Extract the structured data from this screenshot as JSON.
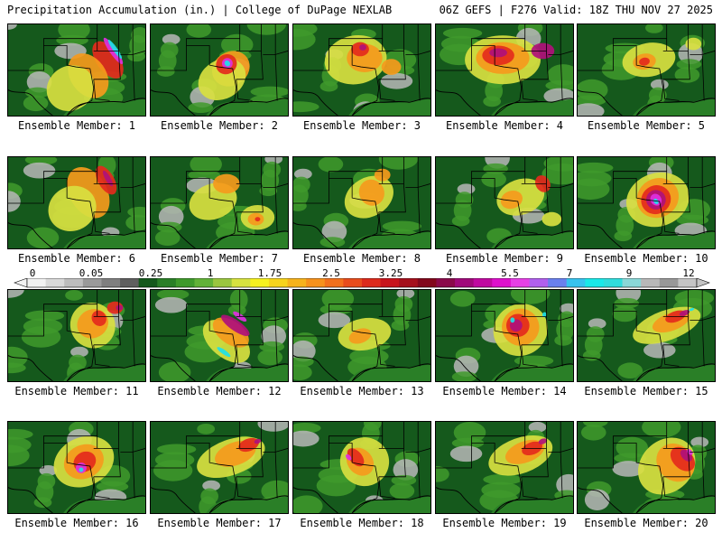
{
  "header": {
    "left": "Precipitation Accumulation (in.) | College of DuPage NEXLAB",
    "right": "06Z GEFS | F276 Valid: 18Z THU NOV 27 2025"
  },
  "colorbar": {
    "labels": [
      "0",
      "0.05",
      "0.25",
      "1",
      "1.75",
      "2.5",
      "3.25",
      "4",
      "5.5",
      "7",
      "9",
      "12"
    ],
    "colors": [
      "#f2f2f2",
      "#d9d9d9",
      "#bdbdbd",
      "#9a9a9a",
      "#7f7f7f",
      "#5f5f5f",
      "#15591c",
      "#2a7f27",
      "#3f9a2c",
      "#62b238",
      "#9ac63f",
      "#d6e23f",
      "#f6f11f",
      "#f6d31c",
      "#f6b21c",
      "#f6911c",
      "#f2701c",
      "#e84c1c",
      "#dd2a1c",
      "#c8141c",
      "#a5101c",
      "#82081c",
      "#8a0a4a",
      "#a00a7a",
      "#c00aa0",
      "#de10cc",
      "#e640e6",
      "#b060ee",
      "#6a80ee",
      "#38c2ee",
      "#1ae8e8",
      "#30dcdc",
      "#8ad8d8",
      "#b8b8b8",
      "#989898",
      "#c4c4c4"
    ]
  },
  "members": [
    {
      "caption": "Ensemble Member: 1",
      "blobs": [
        [
          112,
          40,
          26,
          48,
          -35,
          3
        ],
        [
          90,
          58,
          40,
          55,
          -35,
          2
        ],
        [
          70,
          72,
          55,
          50,
          -35,
          1
        ],
        [
          118,
          30,
          8,
          36,
          -35,
          5
        ],
        [
          120,
          28,
          5,
          26,
          -35,
          6
        ]
      ]
    },
    {
      "caption": "Ensemble Member: 2",
      "blobs": [
        [
          90,
          50,
          44,
          38,
          -35,
          2
        ],
        [
          80,
          62,
          56,
          44,
          -30,
          1
        ],
        [
          85,
          45,
          24,
          22,
          -35,
          3
        ],
        [
          86,
          44,
          12,
          12,
          -35,
          5
        ],
        [
          86,
          44,
          6,
          7,
          -35,
          6
        ]
      ]
    },
    {
      "caption": "Ensemble Member: 3",
      "blobs": [
        [
          70,
          40,
          70,
          55,
          -10,
          1
        ],
        [
          80,
          38,
          40,
          32,
          0,
          2
        ],
        [
          75,
          28,
          20,
          16,
          0,
          3
        ],
        [
          78,
          26,
          8,
          7,
          0,
          4
        ],
        [
          110,
          48,
          22,
          18,
          0,
          2
        ]
      ]
    },
    {
      "caption": "Ensemble Member: 4",
      "blobs": [
        [
          75,
          40,
          85,
          55,
          0,
          1
        ],
        [
          75,
          38,
          60,
          36,
          0,
          2
        ],
        [
          70,
          35,
          36,
          22,
          0,
          3
        ],
        [
          70,
          32,
          20,
          10,
          0,
          4
        ],
        [
          120,
          30,
          26,
          18,
          0,
          4
        ]
      ]
    },
    {
      "caption": "Ensemble Member: 5",
      "blobs": [
        [
          80,
          40,
          60,
          38,
          -10,
          1
        ],
        [
          75,
          42,
          26,
          18,
          -10,
          2
        ],
        [
          75,
          42,
          12,
          9,
          -10,
          3
        ],
        [
          130,
          22,
          18,
          14,
          0,
          1
        ]
      ]
    },
    {
      "caption": "Ensemble Member: 6",
      "blobs": [
        [
          90,
          40,
          42,
          62,
          -30,
          2
        ],
        [
          72,
          58,
          55,
          50,
          -30,
          1
        ],
        [
          110,
          26,
          18,
          36,
          -30,
          3
        ],
        [
          112,
          24,
          6,
          20,
          -30,
          4
        ]
      ]
    },
    {
      "caption": "Ensemble Member: 7",
      "blobs": [
        [
          70,
          50,
          55,
          40,
          -20,
          1
        ],
        [
          120,
          68,
          38,
          28,
          0,
          1
        ],
        [
          118,
          70,
          18,
          14,
          0,
          2
        ],
        [
          85,
          30,
          30,
          22,
          0,
          2
        ],
        [
          120,
          70,
          6,
          5,
          0,
          3
        ]
      ]
    },
    {
      "caption": "Ensemble Member: 8",
      "blobs": [
        [
          85,
          45,
          58,
          44,
          -30,
          1
        ],
        [
          88,
          40,
          28,
          30,
          -30,
          2
        ],
        [
          100,
          20,
          18,
          14,
          0,
          2
        ]
      ]
    },
    {
      "caption": "Ensemble Member: 9",
      "blobs": [
        [
          95,
          45,
          55,
          40,
          -20,
          1
        ],
        [
          85,
          48,
          25,
          20,
          -20,
          2
        ],
        [
          120,
          30,
          16,
          20,
          -30,
          3
        ],
        [
          130,
          70,
          22,
          16,
          0,
          1
        ]
      ]
    },
    {
      "caption": "Ensemble Member: 10",
      "blobs": [
        [
          90,
          48,
          72,
          60,
          -20,
          1
        ],
        [
          90,
          46,
          48,
          44,
          -30,
          2
        ],
        [
          88,
          48,
          34,
          32,
          -35,
          3
        ],
        [
          88,
          48,
          22,
          22,
          -35,
          4
        ],
        [
          88,
          48,
          12,
          14,
          -35,
          5
        ],
        [
          88,
          50,
          5,
          7,
          -35,
          6
        ]
      ]
    },
    {
      "caption": "Ensemble Member: 11",
      "blobs": [
        [
          95,
          40,
          50,
          52,
          -30,
          1
        ],
        [
          95,
          38,
          36,
          32,
          -30,
          2
        ],
        [
          102,
          32,
          16,
          18,
          -30,
          3
        ],
        [
          120,
          20,
          18,
          14,
          0,
          3
        ],
        [
          125,
          20,
          8,
          6,
          0,
          4
        ]
      ]
    },
    {
      "caption": "Ensemble Member: 12",
      "blobs": [
        [
          85,
          58,
          36,
          62,
          -50,
          1
        ],
        [
          90,
          48,
          26,
          46,
          -55,
          2
        ],
        [
          95,
          40,
          12,
          38,
          -55,
          4
        ],
        [
          100,
          30,
          6,
          18,
          -55,
          5
        ],
        [
          82,
          70,
          5,
          18,
          -55,
          6
        ]
      ]
    },
    {
      "caption": "Ensemble Member: 13",
      "blobs": [
        [
          80,
          50,
          60,
          36,
          -10,
          1
        ],
        [
          75,
          52,
          26,
          16,
          -20,
          2
        ]
      ]
    },
    {
      "caption": "Ensemble Member: 14",
      "blobs": [
        [
          95,
          45,
          62,
          58,
          -30,
          1
        ],
        [
          95,
          42,
          42,
          42,
          -30,
          2
        ],
        [
          92,
          40,
          26,
          26,
          -35,
          3
        ],
        [
          90,
          40,
          14,
          14,
          -35,
          4
        ],
        [
          86,
          34,
          5,
          6,
          0,
          6
        ],
        [
          122,
          28,
          5,
          6,
          0,
          6
        ]
      ]
    },
    {
      "caption": "Ensemble Member: 15",
      "blobs": [
        [
          100,
          40,
          80,
          34,
          -20,
          1
        ],
        [
          105,
          36,
          44,
          20,
          -20,
          2
        ],
        [
          110,
          30,
          24,
          12,
          -20,
          3
        ],
        [
          120,
          26,
          12,
          6,
          -20,
          4
        ],
        [
          128,
          22,
          6,
          3,
          -20,
          6
        ]
      ]
    },
    {
      "caption": "Ensemble Member: 16",
      "blobs": [
        [
          85,
          45,
          70,
          55,
          -25,
          1
        ],
        [
          85,
          45,
          46,
          38,
          -25,
          2
        ],
        [
          86,
          45,
          26,
          22,
          -30,
          3
        ],
        [
          82,
          52,
          12,
          12,
          -30,
          5
        ],
        [
          82,
          54,
          5,
          5,
          -30,
          6
        ]
      ]
    },
    {
      "caption": "Ensemble Member: 17",
      "blobs": [
        [
          90,
          40,
          80,
          40,
          -20,
          1
        ],
        [
          95,
          36,
          48,
          26,
          -20,
          2
        ],
        [
          110,
          26,
          24,
          14,
          -20,
          3
        ],
        [
          120,
          22,
          8,
          5,
          -20,
          4
        ]
      ]
    },
    {
      "caption": "Ensemble Member: 18",
      "blobs": [
        [
          80,
          45,
          55,
          55,
          -40,
          1
        ],
        [
          75,
          45,
          28,
          34,
          -40,
          2
        ],
        [
          70,
          40,
          14,
          24,
          -40,
          3
        ],
        [
          62,
          40,
          5,
          8,
          -40,
          5
        ]
      ]
    },
    {
      "caption": "Ensemble Member: 19",
      "blobs": [
        [
          95,
          38,
          75,
          40,
          -20,
          1
        ],
        [
          100,
          34,
          46,
          24,
          -20,
          2
        ],
        [
          108,
          30,
          24,
          14,
          -20,
          3
        ],
        [
          120,
          22,
          10,
          6,
          -20,
          4
        ]
      ]
    },
    {
      "caption": "Ensemble Member: 20",
      "blobs": [
        [
          100,
          50,
          70,
          58,
          -45,
          1
        ],
        [
          110,
          46,
          40,
          46,
          -45,
          2
        ],
        [
          118,
          42,
          22,
          32,
          -45,
          3
        ],
        [
          122,
          38,
          10,
          16,
          -45,
          4
        ],
        [
          126,
          34,
          5,
          8,
          -45,
          5
        ]
      ]
    }
  ]
}
